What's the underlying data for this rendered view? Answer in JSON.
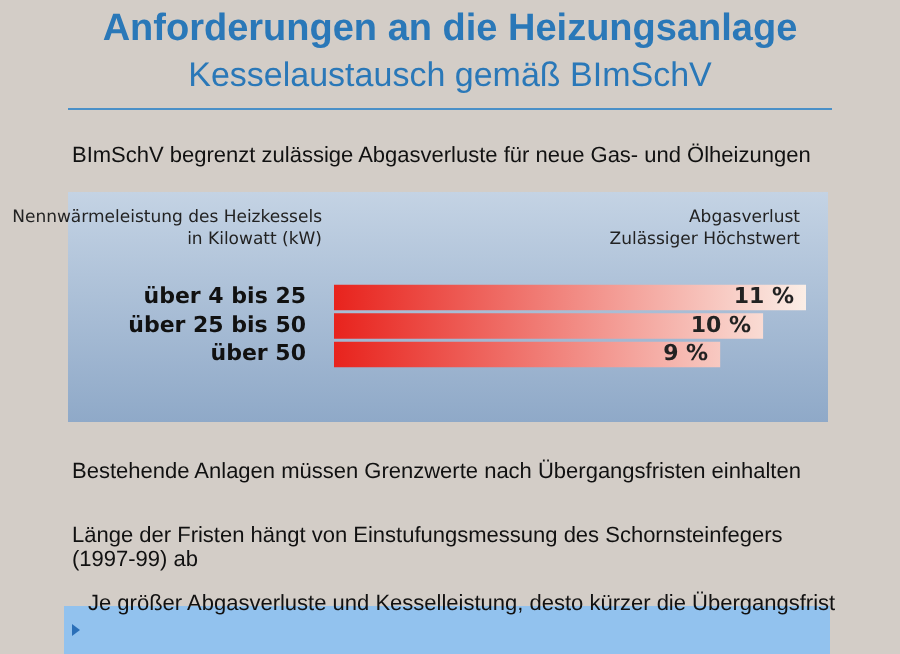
{
  "chart_data": {
    "type": "bar",
    "orientation": "horizontal",
    "title": "Anforderungen an die Heizungsanlage",
    "subtitle": "Kesselaustausch gemäß BImSchV",
    "ylabel": "Nennwärmeleistung des Heizkessels in Kilowatt (kW)",
    "xlabel": "Abgasverlust Zulässiger Höchstwert",
    "categories": [
      "über 4 bis 25",
      "über 25 bis 50",
      "über 50"
    ],
    "values": [
      11,
      10,
      9
    ],
    "value_labels": [
      "11 %",
      "10 %",
      "9 %"
    ],
    "color": "#e8231d",
    "annotations": [
      "BImSchV begrenzt zulässige Abgasverluste für neue Gas- und Ölheizungen",
      "Bestehende Anlagen müssen Grenzwerte nach Übergangsfristen einhalten",
      "Länge der Fristen hängt von Einstufungsmessung des Schornsteinfegers (1997-99) ab",
      "Je größer Abgasverluste und Kesselleistung, desto kürzer die Übergangsfrist"
    ]
  }
}
